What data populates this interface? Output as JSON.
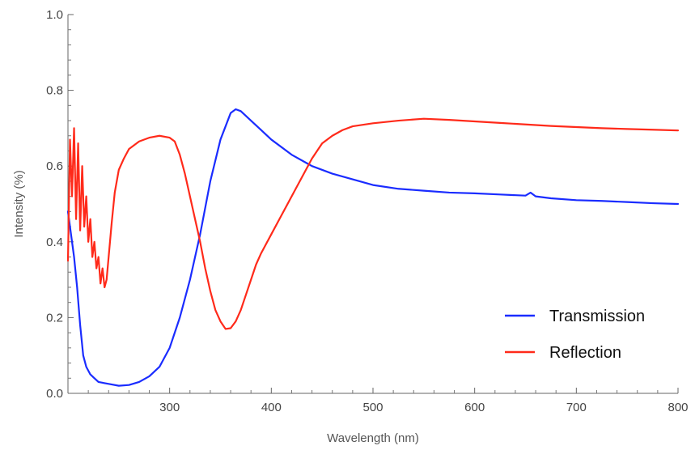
{
  "chart_data": {
    "type": "line",
    "title": "",
    "xlabel": "Wavelength (nm)",
    "ylabel": "Intensity (%)",
    "xlim": [
      200,
      800
    ],
    "ylim": [
      0,
      1.0
    ],
    "x_ticks": [
      300,
      400,
      500,
      600,
      700,
      800
    ],
    "y_ticks": [
      0.0,
      0.2,
      0.4,
      0.6,
      0.8,
      1.0
    ],
    "x_tick_labels": [
      "300",
      "400",
      "500",
      "600",
      "700",
      "800"
    ],
    "y_tick_labels": [
      "0.0",
      "0.2",
      "0.4",
      "0.6",
      "0.8",
      "1.0"
    ],
    "grid": false,
    "legend_position": "bottom-right",
    "series": [
      {
        "name": "Transmission",
        "color": "#1a2cff",
        "points": [
          [
            200,
            0.48
          ],
          [
            203,
            0.42
          ],
          [
            206,
            0.36
          ],
          [
            209,
            0.28
          ],
          [
            212,
            0.18
          ],
          [
            215,
            0.1
          ],
          [
            218,
            0.07
          ],
          [
            222,
            0.05
          ],
          [
            226,
            0.04
          ],
          [
            230,
            0.03
          ],
          [
            240,
            0.025
          ],
          [
            250,
            0.02
          ],
          [
            260,
            0.022
          ],
          [
            270,
            0.03
          ],
          [
            280,
            0.045
          ],
          [
            290,
            0.07
          ],
          [
            300,
            0.12
          ],
          [
            310,
            0.2
          ],
          [
            320,
            0.3
          ],
          [
            330,
            0.42
          ],
          [
            340,
            0.56
          ],
          [
            350,
            0.67
          ],
          [
            360,
            0.74
          ],
          [
            365,
            0.75
          ],
          [
            370,
            0.745
          ],
          [
            380,
            0.72
          ],
          [
            390,
            0.695
          ],
          [
            400,
            0.67
          ],
          [
            420,
            0.63
          ],
          [
            440,
            0.6
          ],
          [
            460,
            0.58
          ],
          [
            480,
            0.565
          ],
          [
            500,
            0.55
          ],
          [
            525,
            0.54
          ],
          [
            550,
            0.535
          ],
          [
            575,
            0.53
          ],
          [
            600,
            0.528
          ],
          [
            625,
            0.525
          ],
          [
            650,
            0.522
          ],
          [
            655,
            0.53
          ],
          [
            660,
            0.52
          ],
          [
            675,
            0.515
          ],
          [
            700,
            0.51
          ],
          [
            725,
            0.508
          ],
          [
            750,
            0.505
          ],
          [
            775,
            0.502
          ],
          [
            800,
            0.5
          ]
        ]
      },
      {
        "name": "Reflection",
        "color": "#ff2a1a",
        "points": [
          [
            200,
            0.35
          ],
          [
            202,
            0.67
          ],
          [
            204,
            0.52
          ],
          [
            206,
            0.7
          ],
          [
            208,
            0.46
          ],
          [
            210,
            0.66
          ],
          [
            212,
            0.43
          ],
          [
            214,
            0.6
          ],
          [
            216,
            0.44
          ],
          [
            218,
            0.52
          ],
          [
            220,
            0.4
          ],
          [
            222,
            0.46
          ],
          [
            224,
            0.36
          ],
          [
            226,
            0.4
          ],
          [
            228,
            0.33
          ],
          [
            230,
            0.36
          ],
          [
            232,
            0.29
          ],
          [
            234,
            0.33
          ],
          [
            236,
            0.28
          ],
          [
            238,
            0.3
          ],
          [
            240,
            0.36
          ],
          [
            243,
            0.45
          ],
          [
            246,
            0.53
          ],
          [
            250,
            0.59
          ],
          [
            255,
            0.62
          ],
          [
            260,
            0.645
          ],
          [
            270,
            0.665
          ],
          [
            280,
            0.675
          ],
          [
            290,
            0.68
          ],
          [
            300,
            0.675
          ],
          [
            305,
            0.665
          ],
          [
            310,
            0.63
          ],
          [
            315,
            0.58
          ],
          [
            320,
            0.52
          ],
          [
            325,
            0.46
          ],
          [
            330,
            0.4
          ],
          [
            335,
            0.33
          ],
          [
            340,
            0.27
          ],
          [
            345,
            0.22
          ],
          [
            350,
            0.19
          ],
          [
            355,
            0.17
          ],
          [
            360,
            0.172
          ],
          [
            365,
            0.19
          ],
          [
            370,
            0.22
          ],
          [
            375,
            0.26
          ],
          [
            380,
            0.3
          ],
          [
            385,
            0.34
          ],
          [
            390,
            0.37
          ],
          [
            400,
            0.42
          ],
          [
            410,
            0.47
          ],
          [
            420,
            0.52
          ],
          [
            430,
            0.57
          ],
          [
            440,
            0.62
          ],
          [
            450,
            0.66
          ],
          [
            460,
            0.68
          ],
          [
            470,
            0.695
          ],
          [
            480,
            0.705
          ],
          [
            500,
            0.713
          ],
          [
            525,
            0.72
          ],
          [
            550,
            0.725
          ],
          [
            575,
            0.722
          ],
          [
            600,
            0.718
          ],
          [
            625,
            0.714
          ],
          [
            650,
            0.71
          ],
          [
            675,
            0.706
          ],
          [
            700,
            0.703
          ],
          [
            725,
            0.7
          ],
          [
            750,
            0.698
          ],
          [
            775,
            0.696
          ],
          [
            800,
            0.694
          ]
        ]
      }
    ]
  }
}
